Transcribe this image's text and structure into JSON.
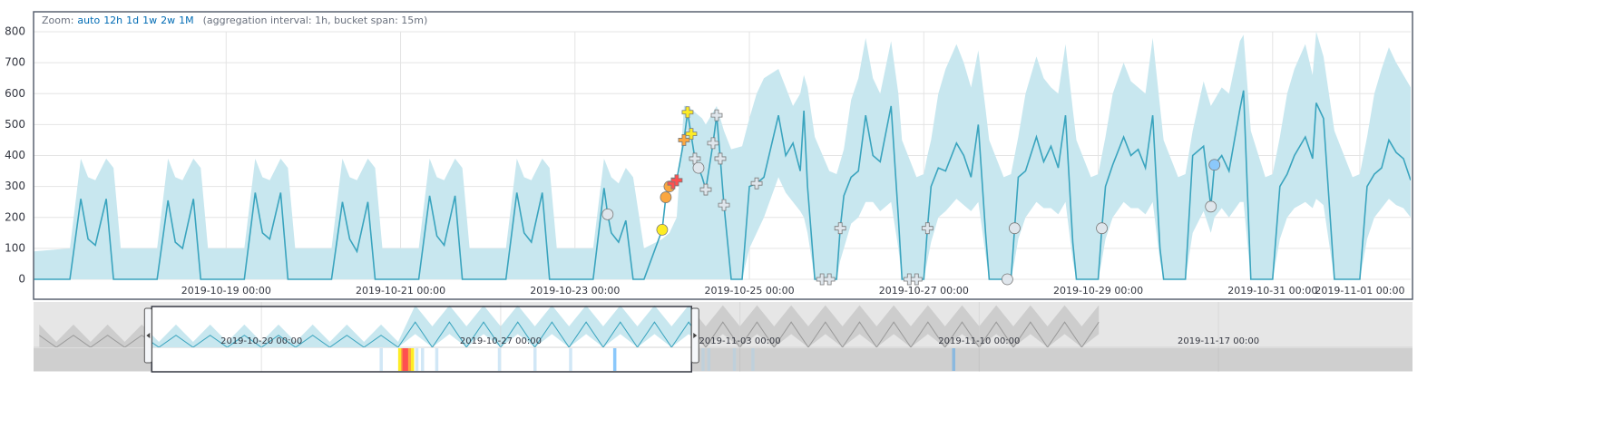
{
  "zoom": {
    "label": "Zoom:",
    "options": [
      "auto",
      "12h",
      "1d",
      "1w",
      "2w",
      "1M"
    ],
    "note": "(aggregation interval: 1h, bucket span: 15m)"
  },
  "chart_data": [
    {
      "type": "line",
      "color": "#3aa4be",
      "band_color": "#c8e7ef",
      "grid": true,
      "xlim": [
        "2019-10-16 19:00",
        "2019-11-01 14:00"
      ],
      "xticks": [
        "2019-10-19 00:00",
        "2019-10-21 00:00",
        "2019-10-23 00:00",
        "2019-10-25 00:00",
        "2019-10-27 00:00",
        "2019-10-29 00:00",
        "2019-10-31 00:00",
        "2019-11-01 00:00"
      ],
      "ylim": [
        0,
        800
      ],
      "yticks": [
        0,
        100,
        200,
        300,
        400,
        500,
        600,
        700,
        800
      ],
      "x": [
        "2019-10-16 19:00",
        "2019-10-17 05:00",
        "2019-10-17 08:00",
        "2019-10-17 10:00",
        "2019-10-17 12:00",
        "2019-10-17 15:00",
        "2019-10-17 17:00",
        "2019-10-17 19:00",
        "2019-10-18 05:00",
        "2019-10-18 08:00",
        "2019-10-18 10:00",
        "2019-10-18 12:00",
        "2019-10-18 15:00",
        "2019-10-18 17:00",
        "2019-10-18 19:00",
        "2019-10-19 05:00",
        "2019-10-19 08:00",
        "2019-10-19 10:00",
        "2019-10-19 12:00",
        "2019-10-19 15:00",
        "2019-10-19 17:00",
        "2019-10-19 19:00",
        "2019-10-20 05:00",
        "2019-10-20 08:00",
        "2019-10-20 10:00",
        "2019-10-20 12:00",
        "2019-10-20 15:00",
        "2019-10-20 17:00",
        "2019-10-20 19:00",
        "2019-10-21 05:00",
        "2019-10-21 08:00",
        "2019-10-21 10:00",
        "2019-10-21 12:00",
        "2019-10-21 15:00",
        "2019-10-21 17:00",
        "2019-10-21 19:00",
        "2019-10-22 05:00",
        "2019-10-22 08:00",
        "2019-10-22 10:00",
        "2019-10-22 12:00",
        "2019-10-22 15:00",
        "2019-10-22 17:00",
        "2019-10-22 19:00",
        "2019-10-23 05:00",
        "2019-10-23 08:00",
        "2019-10-23 09:00",
        "2019-10-23 10:00",
        "2019-10-23 12:00",
        "2019-10-23 14:00",
        "2019-10-23 16:00",
        "2019-10-23 19:00",
        "2019-10-24 00:00",
        "2019-10-24 01:00",
        "2019-10-24 02:00",
        "2019-10-24 04:00",
        "2019-10-24 06:00",
        "2019-10-24 07:00",
        "2019-10-24 09:00",
        "2019-10-24 11:00",
        "2019-10-24 12:00",
        "2019-10-24 14:00",
        "2019-10-24 15:00",
        "2019-10-24 16:00",
        "2019-10-24 17:00",
        "2019-10-24 19:00",
        "2019-10-24 22:00",
        "2019-10-25 00:00",
        "2019-10-25 02:00",
        "2019-10-25 04:00",
        "2019-10-25 08:00",
        "2019-10-25 10:00",
        "2019-10-25 12:00",
        "2019-10-25 14:00",
        "2019-10-25 15:00",
        "2019-10-25 16:00",
        "2019-10-25 18:00",
        "2019-10-25 22:00",
        "2019-10-26 00:00",
        "2019-10-26 01:00",
        "2019-10-26 02:00",
        "2019-10-26 04:00",
        "2019-10-26 06:00",
        "2019-10-26 08:00",
        "2019-10-26 10:00",
        "2019-10-26 12:00",
        "2019-10-26 15:00",
        "2019-10-26 17:00",
        "2019-10-26 18:00",
        "2019-10-26 22:00",
        "2019-10-27 00:00",
        "2019-10-27 01:00",
        "2019-10-27 02:00",
        "2019-10-27 04:00",
        "2019-10-27 06:00",
        "2019-10-27 09:00",
        "2019-10-27 11:00",
        "2019-10-27 13:00",
        "2019-10-27 15:00",
        "2019-10-27 17:00",
        "2019-10-27 18:00",
        "2019-10-27 22:00",
        "2019-10-28 00:00",
        "2019-10-28 01:00",
        "2019-10-28 02:00",
        "2019-10-28 04:00",
        "2019-10-28 07:00",
        "2019-10-28 09:00",
        "2019-10-28 11:00",
        "2019-10-28 13:00",
        "2019-10-28 15:00",
        "2019-10-28 17:00",
        "2019-10-28 18:00",
        "2019-10-28 22:00",
        "2019-10-29 00:00",
        "2019-10-29 01:00",
        "2019-10-29 02:00",
        "2019-10-29 04:00",
        "2019-10-29 07:00",
        "2019-10-29 09:00",
        "2019-10-29 11:00",
        "2019-10-29 13:00",
        "2019-10-29 15:00",
        "2019-10-29 17:00",
        "2019-10-29 18:00",
        "2019-10-29 22:00",
        "2019-10-30 00:00",
        "2019-10-30 02:00",
        "2019-10-30 05:00",
        "2019-10-30 07:00",
        "2019-10-30 08:00",
        "2019-10-30 10:00",
        "2019-10-30 12:00",
        "2019-10-30 15:00",
        "2019-10-30 16:00",
        "2019-10-30 18:00",
        "2019-10-30 22:00",
        "2019-10-31 00:00",
        "2019-10-31 02:00",
        "2019-10-31 04:00",
        "2019-10-31 06:00",
        "2019-10-31 09:00",
        "2019-10-31 11:00",
        "2019-10-31 12:00",
        "2019-10-31 14:00",
        "2019-10-31 17:00",
        "2019-10-31 22:00",
        "2019-11-01 00:00",
        "2019-11-01 02:00",
        "2019-11-01 04:00",
        "2019-11-01 06:00",
        "2019-11-01 08:00",
        "2019-11-01 10:00",
        "2019-11-01 12:00",
        "2019-11-01 14:00"
      ],
      "values": [
        0,
        0,
        260,
        130,
        110,
        260,
        0,
        0,
        0,
        255,
        120,
        100,
        260,
        0,
        0,
        0,
        280,
        150,
        130,
        280,
        0,
        0,
        0,
        250,
        130,
        90,
        250,
        0,
        0,
        0,
        270,
        140,
        110,
        270,
        0,
        0,
        0,
        280,
        150,
        120,
        280,
        0,
        0,
        0,
        295,
        210,
        150,
        120,
        190,
        0,
        0,
        160,
        265,
        300,
        320,
        450,
        540,
        390,
        330,
        290,
        440,
        530,
        390,
        240,
        0,
        0,
        300,
        310,
        330,
        530,
        400,
        440,
        350,
        545,
        300,
        0,
        0,
        0,
        165,
        270,
        330,
        350,
        530,
        400,
        380,
        560,
        200,
        0,
        0,
        0,
        165,
        300,
        360,
        350,
        440,
        400,
        330,
        500,
        150,
        0,
        0,
        0,
        165,
        330,
        350,
        460,
        380,
        430,
        360,
        530,
        120,
        0,
        0,
        0,
        165,
        300,
        370,
        460,
        400,
        420,
        360,
        530,
        100,
        0,
        0,
        0,
        400,
        430,
        235,
        370,
        400,
        350,
        550,
        610,
        0,
        0,
        0,
        300,
        340,
        400,
        460,
        390,
        570,
        520,
        0,
        0,
        0,
        300,
        340,
        360,
        450,
        410,
        390,
        320
      ],
      "upper": [
        90,
        100,
        390,
        330,
        320,
        390,
        360,
        100,
        100,
        390,
        330,
        320,
        390,
        360,
        100,
        100,
        390,
        330,
        320,
        390,
        360,
        100,
        100,
        390,
        330,
        320,
        390,
        360,
        100,
        100,
        390,
        330,
        320,
        390,
        360,
        100,
        100,
        390,
        330,
        320,
        390,
        360,
        100,
        100,
        390,
        360,
        330,
        310,
        360,
        330,
        100,
        130,
        140,
        150,
        200,
        560,
        560,
        540,
        520,
        500,
        540,
        560,
        520,
        480,
        420,
        430,
        520,
        600,
        650,
        680,
        620,
        560,
        600,
        660,
        620,
        460,
        350,
        340,
        380,
        420,
        580,
        650,
        780,
        650,
        600,
        770,
        600,
        450,
        330,
        340,
        400,
        450,
        600,
        680,
        760,
        700,
        620,
        740,
        550,
        450,
        330,
        340,
        400,
        460,
        600,
        720,
        650,
        620,
        600,
        760,
        550,
        450,
        330,
        340,
        400,
        460,
        600,
        700,
        640,
        620,
        600,
        780,
        560,
        450,
        330,
        340,
        480,
        640,
        560,
        580,
        620,
        600,
        770,
        790,
        480,
        330,
        340,
        460,
        600,
        680,
        760,
        660,
        800,
        720,
        480,
        330,
        340,
        460,
        600,
        680,
        750,
        700,
        660,
        620
      ],
      "lower": [
        0,
        0,
        0,
        0,
        0,
        0,
        0,
        0,
        0,
        0,
        0,
        0,
        0,
        0,
        0,
        0,
        0,
        0,
        0,
        0,
        0,
        0,
        0,
        0,
        0,
        0,
        0,
        0,
        0,
        0,
        0,
        0,
        0,
        0,
        0,
        0,
        0,
        0,
        0,
        0,
        0,
        0,
        0,
        0,
        0,
        0,
        0,
        0,
        0,
        0,
        0,
        0,
        0,
        0,
        0,
        0,
        0,
        0,
        0,
        0,
        0,
        0,
        0,
        0,
        0,
        0,
        100,
        150,
        200,
        330,
        280,
        250,
        220,
        200,
        150,
        0,
        0,
        0,
        60,
        100,
        180,
        200,
        250,
        250,
        220,
        250,
        100,
        0,
        0,
        0,
        60,
        120,
        200,
        220,
        260,
        240,
        220,
        250,
        80,
        0,
        0,
        0,
        60,
        130,
        200,
        250,
        230,
        230,
        210,
        250,
        60,
        0,
        0,
        0,
        60,
        130,
        200,
        250,
        230,
        230,
        210,
        250,
        60,
        0,
        0,
        0,
        150,
        220,
        150,
        200,
        230,
        200,
        250,
        250,
        0,
        0,
        0,
        130,
        200,
        230,
        250,
        230,
        260,
        240,
        0,
        0,
        0,
        130,
        200,
        230,
        260,
        240,
        230,
        200
      ],
      "anomalies": {
        "x": [
          "2019-10-23 09:00",
          "2019-10-24 00:00",
          "2019-10-24 01:00",
          "2019-10-24 02:00",
          "2019-10-24 03:00",
          "2019-10-24 04:00",
          "2019-10-24 06:00",
          "2019-10-24 07:00",
          "2019-10-24 08:00",
          "2019-10-24 09:00",
          "2019-10-24 10:00",
          "2019-10-24 12:00",
          "2019-10-24 14:00",
          "2019-10-24 15:00",
          "2019-10-24 16:00",
          "2019-10-24 17:00",
          "2019-10-25 02:00",
          "2019-10-25 20:00",
          "2019-10-25 22:00",
          "2019-10-26 01:00",
          "2019-10-26 20:00",
          "2019-10-26 22:00",
          "2019-10-27 01:00",
          "2019-10-27 23:00",
          "2019-10-28 01:00",
          "2019-10-29 01:00",
          "2019-10-30 07:00",
          "2019-10-30 08:00"
        ],
        "values": [
          210,
          160,
          265,
          300,
          310,
          320,
          450,
          540,
          470,
          390,
          360,
          290,
          440,
          530,
          390,
          240,
          310,
          0,
          0,
          165,
          0,
          0,
          165,
          0,
          165,
          165,
          235,
          370
        ],
        "colors": [
          "#dfe6ec",
          "#fdec25",
          "#fba740",
          "#fba740",
          "#fe5050",
          "#fe5050",
          "#fba740",
          "#fdec25",
          "#fdec25",
          "#dfe6ec",
          "#dfe6ec",
          "#dfe6ec",
          "#dfe6ec",
          "#dfe6ec",
          "#dfe6ec",
          "#dfe6ec",
          "#dfe6ec",
          "#dfe6ec",
          "#dfe6ec",
          "#dfe6ec",
          "#dfe6ec",
          "#dfe6ec",
          "#dfe6ec",
          "#dfe6ec",
          "#dfe6ec",
          "#dfe6ec",
          "#dfe6ec",
          "#8bc8fb"
        ],
        "shapes": [
          "circle",
          "circle",
          "circle",
          "circle",
          "cross",
          "cross",
          "cross",
          "cross",
          "cross",
          "cross",
          "circle",
          "cross",
          "cross",
          "cross",
          "cross",
          "cross",
          "cross",
          "cross",
          "cross",
          "cross",
          "cross",
          "cross",
          "cross",
          "circle",
          "circle",
          "circle",
          "circle",
          "circle"
        ]
      }
    },
    {
      "type": "line",
      "color": "#3aa4be",
      "band_color": "#c8e7ef",
      "muted_color": "#9a9a9a",
      "muted_band_color": "#cdcdcd",
      "xlim": [
        "2019-10-13 08:00",
        "2019-11-22 15:00"
      ],
      "xticks": [
        "2019-10-20 00:00",
        "2019-10-27 00:00",
        "2019-11-03 00:00",
        "2019-11-10 00:00",
        "2019-11-17 00:00"
      ],
      "ylim": [
        0,
        800
      ],
      "x": [
        "2019-10-13 12:00",
        "2019-10-14 00:00",
        "2019-10-14 12:00",
        "2019-10-15 00:00",
        "2019-10-15 12:00",
        "2019-10-16 00:00",
        "2019-10-16 12:00",
        "2019-10-17 00:00",
        "2019-10-17 12:00",
        "2019-10-18 00:00",
        "2019-10-18 12:00",
        "2019-10-19 00:00",
        "2019-10-19 12:00",
        "2019-10-20 00:00",
        "2019-10-20 12:00",
        "2019-10-21 00:00",
        "2019-10-21 12:00",
        "2019-10-22 00:00",
        "2019-10-22 12:00",
        "2019-10-23 00:00",
        "2019-10-23 12:00",
        "2019-10-24 00:00",
        "2019-10-24 12:00",
        "2019-10-25 00:00",
        "2019-10-25 12:00",
        "2019-10-26 00:00",
        "2019-10-26 12:00",
        "2019-10-27 00:00",
        "2019-10-27 12:00",
        "2019-10-28 00:00",
        "2019-10-28 12:00",
        "2019-10-29 00:00",
        "2019-10-29 12:00",
        "2019-10-30 00:00",
        "2019-10-30 12:00",
        "2019-10-31 00:00",
        "2019-10-31 12:00",
        "2019-11-01 00:00",
        "2019-11-01 12:00",
        "2019-11-02 00:00",
        "2019-11-02 12:00",
        "2019-11-03 00:00",
        "2019-11-03 12:00",
        "2019-11-04 00:00",
        "2019-11-04 12:00",
        "2019-11-05 00:00",
        "2019-11-05 12:00",
        "2019-11-06 00:00",
        "2019-11-06 12:00",
        "2019-11-07 00:00",
        "2019-11-07 12:00",
        "2019-11-08 00:00",
        "2019-11-08 12:00",
        "2019-11-09 00:00",
        "2019-11-09 12:00",
        "2019-11-10 00:00",
        "2019-11-10 12:00",
        "2019-11-11 00:00",
        "2019-11-11 12:00",
        "2019-11-12 00:00",
        "2019-11-12 12:00",
        "2019-11-13 00:00",
        "2019-11-13 12:00"
      ],
      "values": [
        200,
        0,
        200,
        0,
        200,
        0,
        200,
        0,
        200,
        0,
        200,
        0,
        200,
        0,
        200,
        0,
        200,
        0,
        200,
        0,
        200,
        0,
        420,
        0,
        420,
        0,
        420,
        0,
        420,
        0,
        420,
        0,
        420,
        0,
        420,
        0,
        420,
        0,
        420,
        0,
        420,
        0,
        420,
        0,
        420,
        0,
        420,
        0,
        420,
        0,
        420,
        0,
        420,
        0,
        420,
        0,
        420,
        0,
        420,
        0,
        420,
        0,
        420
      ],
      "upper": [
        380,
        90,
        380,
        90,
        380,
        90,
        380,
        90,
        380,
        90,
        380,
        90,
        380,
        90,
        380,
        90,
        380,
        90,
        380,
        90,
        380,
        90,
        700,
        350,
        700,
        350,
        700,
        350,
        700,
        350,
        700,
        350,
        700,
        350,
        700,
        350,
        700,
        350,
        700,
        350,
        700,
        350,
        700,
        350,
        700,
        350,
        700,
        350,
        700,
        350,
        700,
        350,
        700,
        350,
        700,
        350,
        700,
        350,
        700,
        350,
        700,
        350,
        700
      ],
      "lower": [
        0,
        0,
        0,
        0,
        0,
        0,
        0,
        0,
        0,
        0,
        0,
        0,
        0,
        0,
        0,
        0,
        0,
        0,
        0,
        0,
        0,
        0,
        220,
        0,
        220,
        0,
        220,
        0,
        220,
        0,
        220,
        0,
        220,
        0,
        220,
        0,
        220,
        0,
        220,
        0,
        220,
        0,
        220,
        0,
        220,
        0,
        220,
        0,
        220,
        0,
        220,
        0,
        220,
        0,
        220,
        0,
        220,
        0,
        220,
        0,
        220,
        0,
        220
      ],
      "cells": {
        "x": [
          "2019-10-23 11:00",
          "2019-10-24 00:00",
          "2019-10-24 02:00",
          "2019-10-24 03:00",
          "2019-10-24 05:00",
          "2019-10-24 07:00",
          "2019-10-24 09:00",
          "2019-10-24 12:00",
          "2019-10-24 16:00",
          "2019-10-25 02:00",
          "2019-10-26 22:00",
          "2019-10-27 23:00",
          "2019-10-29 00:00",
          "2019-10-30 07:00",
          "2019-11-01 21:00",
          "2019-11-02 01:00",
          "2019-11-02 19:00",
          "2019-11-03 08:00",
          "2019-11-09 05:00"
        ],
        "values": [
          2,
          40,
          60,
          90,
          80,
          65,
          35,
          3,
          3,
          2,
          2,
          2,
          2,
          10,
          2,
          2,
          2,
          2,
          10
        ],
        "colors": [
          "#d1e7f6",
          "#fdec25",
          "#fba740",
          "#fe5050",
          "#fe5050",
          "#fba740",
          "#fdec25",
          "#d1e7f6",
          "#d1e7f6",
          "#d1e7f6",
          "#d1e7f6",
          "#d1e7f6",
          "#d1e7f6",
          "#8bc8fb",
          "#d1e7f6",
          "#d1e7f6",
          "#d1e7f6",
          "#d1e7f6",
          "#8bc8fb"
        ]
      }
    }
  ]
}
